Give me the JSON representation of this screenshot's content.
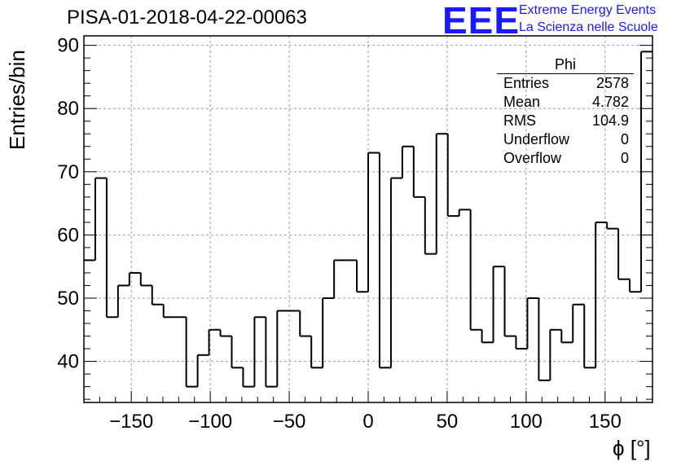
{
  "header": {
    "title": "PISA-01-2018-04-22-00063",
    "logo_text": "EEE",
    "logo_line1": "Extreme Energy Events",
    "logo_line2": "La Scienza nelle Scuole"
  },
  "stats_box": {
    "name": "Phi",
    "rows": [
      {
        "label": "Entries",
        "value": "2578"
      },
      {
        "label": "Mean",
        "value": "4.782"
      },
      {
        "label": "RMS",
        "value": "104.9"
      },
      {
        "label": "Underflow",
        "value": "0"
      },
      {
        "label": "Overflow",
        "value": "0"
      }
    ]
  },
  "chart_data": {
    "type": "histogram",
    "title": "PISA-01-2018-04-22-00063",
    "xlabel": "ϕ [°]",
    "ylabel": "Entries/bin",
    "xlim": [
      -180,
      180
    ],
    "ylim": [
      33.5,
      91.5
    ],
    "bin_edges_start": -180,
    "bin_width": 7.2,
    "counts": [
      56,
      69,
      47,
      52,
      54,
      52,
      49,
      47,
      47,
      36,
      41,
      45,
      44,
      39,
      36,
      47,
      36,
      48,
      48,
      44,
      39,
      50,
      56,
      56,
      51,
      73,
      39,
      69,
      74,
      66,
      57,
      76,
      63,
      64,
      45,
      43,
      55,
      44,
      42,
      50,
      37,
      45,
      43,
      49,
      39,
      62,
      61,
      53,
      51,
      89
    ],
    "x_ticks": [
      -150,
      -100,
      -50,
      0,
      50,
      100,
      150
    ],
    "x_tick_labels": [
      "−150",
      "−100",
      "−50",
      "0",
      "50",
      "100",
      "150"
    ],
    "y_ticks": [
      40,
      50,
      60,
      70,
      80,
      90
    ],
    "y_tick_labels": [
      "40",
      "50",
      "60",
      "70",
      "80",
      "90"
    ],
    "grid": true,
    "line_color": "#000000",
    "grid_color": "#999999"
  }
}
